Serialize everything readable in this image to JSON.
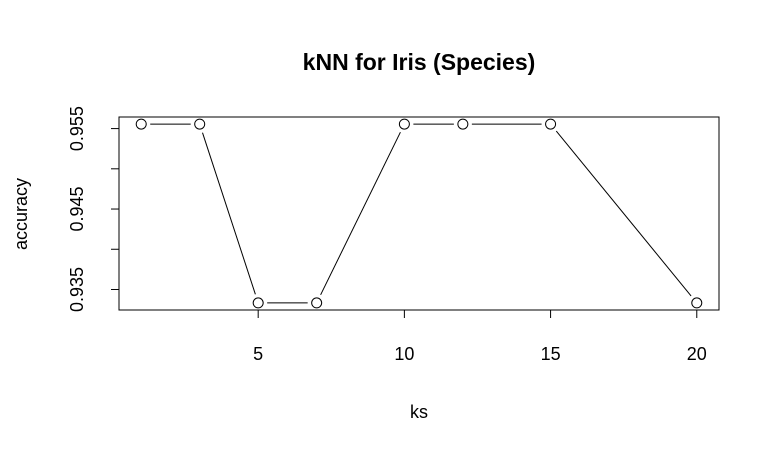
{
  "chart_data": {
    "type": "line",
    "title": "kNN for Iris (Species)",
    "xlabel": "ks",
    "ylabel": "accuracy",
    "x": [
      1,
      3,
      5,
      7,
      10,
      12,
      15,
      20
    ],
    "y": [
      0.9555556,
      0.9555556,
      0.9333333,
      0.9333333,
      0.9555556,
      0.9555556,
      0.9555556,
      0.9333333
    ],
    "x_ticks": [
      5,
      10,
      15,
      20
    ],
    "x_tick_labels": [
      "5",
      "10",
      "15",
      "20"
    ],
    "y_ticks": [
      0.935,
      0.94,
      0.945,
      0.95,
      0.955
    ],
    "y_tick_labels": [
      "0.935",
      "",
      "0.945",
      "",
      "0.955"
    ],
    "xlim": [
      0.24,
      20.76
    ],
    "ylim": [
      0.93245,
      0.95644
    ],
    "grid": false,
    "marker": "open-circle",
    "line_style": "lines-with-gaps",
    "colors": {
      "line": "#000000",
      "marker_fill": "#ffffff",
      "background": "#ffffff"
    }
  }
}
